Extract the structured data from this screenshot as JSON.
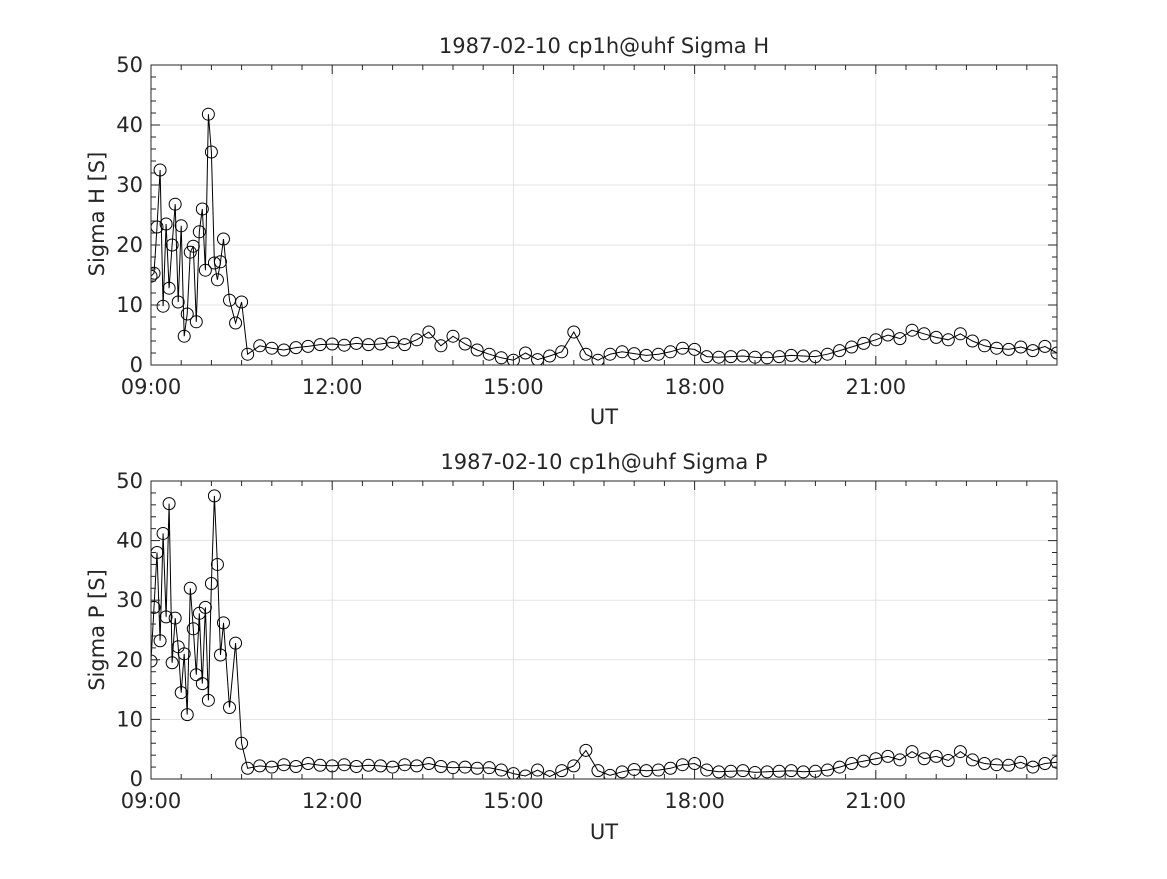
{
  "chart_data": [
    {
      "type": "line",
      "title": "1987-02-10  cp1h@uhf Sigma H",
      "xlabel": "UT",
      "ylabel": "Sigma H [S]",
      "xlim": [
        9.0,
        24.0
      ],
      "ylim": [
        0,
        50
      ],
      "xticks": [
        9,
        12,
        15,
        18,
        21
      ],
      "xtick_labels": [
        "09:00",
        "12:00",
        "15:00",
        "18:00",
        "21:00"
      ],
      "yticks": [
        0,
        10,
        20,
        30,
        40,
        50
      ],
      "ytick_labels": [
        "0",
        "10",
        "20",
        "30",
        "40",
        "50"
      ],
      "grid": true,
      "marker": "circle",
      "color": "#000000",
      "series": [
        {
          "x": [
            9.0,
            9.05,
            9.1,
            9.15,
            9.2,
            9.25,
            9.3,
            9.35,
            9.4,
            9.45,
            9.5,
            9.55,
            9.6,
            9.65,
            9.7,
            9.75,
            9.8,
            9.85,
            9.9,
            9.95,
            10.0,
            10.05,
            10.1,
            10.15,
            10.2,
            10.3,
            10.4,
            10.5,
            10.6,
            10.8,
            11.0,
            11.2,
            11.4,
            11.6,
            11.8,
            12.0,
            12.2,
            12.4,
            12.6,
            12.8,
            13.0,
            13.2,
            13.4,
            13.6,
            13.8,
            14.0,
            14.2,
            14.4,
            14.6,
            14.8,
            15.0,
            15.2,
            15.4,
            15.6,
            15.8,
            16.0,
            16.2,
            16.4,
            16.6,
            16.8,
            17.0,
            17.2,
            17.4,
            17.6,
            17.8,
            18.0,
            18.2,
            18.4,
            18.6,
            18.8,
            19.0,
            19.2,
            19.4,
            19.6,
            19.8,
            20.0,
            20.2,
            20.4,
            20.6,
            20.8,
            21.0,
            21.2,
            21.4,
            21.6,
            21.8,
            22.0,
            22.2,
            22.4,
            22.6,
            22.8,
            23.0,
            23.2,
            23.4,
            23.6,
            23.8,
            24.0
          ],
          "y": [
            14.8,
            15.3,
            23.0,
            32.5,
            9.8,
            23.5,
            12.8,
            20.0,
            26.8,
            10.5,
            23.2,
            4.8,
            8.5,
            18.8,
            19.8,
            7.2,
            22.2,
            26.0,
            15.8,
            41.8,
            35.5,
            17.0,
            14.2,
            17.2,
            21.0,
            10.8,
            7.0,
            10.5,
            1.8,
            3.2,
            2.8,
            2.5,
            2.9,
            3.1,
            3.4,
            3.5,
            3.3,
            3.6,
            3.4,
            3.5,
            3.8,
            3.4,
            4.2,
            5.5,
            3.2,
            4.8,
            3.5,
            2.5,
            1.8,
            1.2,
            0.8,
            2.0,
            0.9,
            1.5,
            2.2,
            5.5,
            1.8,
            0.8,
            1.8,
            2.2,
            1.9,
            1.6,
            1.8,
            2.2,
            2.8,
            2.6,
            1.4,
            1.3,
            1.4,
            1.5,
            1.3,
            1.2,
            1.4,
            1.6,
            1.5,
            1.4,
            1.8,
            2.4,
            3.0,
            3.6,
            4.2,
            5.0,
            4.4,
            5.8,
            5.2,
            4.6,
            4.2,
            5.2,
            4.0,
            3.2,
            2.8,
            2.6,
            3.0,
            2.4,
            3.1,
            2.0
          ]
        }
      ]
    },
    {
      "type": "line",
      "title": "1987-02-10  cp1h@uhf Sigma P",
      "xlabel": "UT",
      "ylabel": "Sigma P [S]",
      "xlim": [
        9.0,
        24.0
      ],
      "ylim": [
        0,
        50
      ],
      "xticks": [
        9,
        12,
        15,
        18,
        21
      ],
      "xtick_labels": [
        "09:00",
        "12:00",
        "15:00",
        "18:00",
        "21:00"
      ],
      "yticks": [
        0,
        10,
        20,
        30,
        40,
        50
      ],
      "ytick_labels": [
        "0",
        "10",
        "20",
        "30",
        "40",
        "50"
      ],
      "grid": true,
      "marker": "circle",
      "color": "#000000",
      "series": [
        {
          "x": [
            9.0,
            9.05,
            9.1,
            9.15,
            9.2,
            9.25,
            9.3,
            9.35,
            9.4,
            9.45,
            9.5,
            9.55,
            9.6,
            9.65,
            9.7,
            9.75,
            9.8,
            9.85,
            9.9,
            9.95,
            10.0,
            10.05,
            10.1,
            10.15,
            10.2,
            10.3,
            10.4,
            10.5,
            10.6,
            10.8,
            11.0,
            11.2,
            11.4,
            11.6,
            11.8,
            12.0,
            12.2,
            12.4,
            12.6,
            12.8,
            13.0,
            13.2,
            13.4,
            13.6,
            13.8,
            14.0,
            14.2,
            14.4,
            14.6,
            14.8,
            15.0,
            15.2,
            15.4,
            15.6,
            15.8,
            16.0,
            16.2,
            16.4,
            16.6,
            16.8,
            17.0,
            17.2,
            17.4,
            17.6,
            17.8,
            18.0,
            18.2,
            18.4,
            18.6,
            18.8,
            19.0,
            19.2,
            19.4,
            19.6,
            19.8,
            20.0,
            20.2,
            20.4,
            20.6,
            20.8,
            21.0,
            21.2,
            21.4,
            21.6,
            21.8,
            22.0,
            22.2,
            22.4,
            22.6,
            22.8,
            23.0,
            23.2,
            23.4,
            23.6,
            23.8,
            24.0
          ],
          "y": [
            19.8,
            28.8,
            38.0,
            23.2,
            41.2,
            27.2,
            46.2,
            19.5,
            27.0,
            22.2,
            14.5,
            21.0,
            10.8,
            32.0,
            25.2,
            17.5,
            27.8,
            16.0,
            28.8,
            13.2,
            32.8,
            47.5,
            36.0,
            20.8,
            26.2,
            12.0,
            22.8,
            6.0,
            1.8,
            2.2,
            2.0,
            2.4,
            2.1,
            2.6,
            2.3,
            2.2,
            2.4,
            2.1,
            2.3,
            2.2,
            2.0,
            2.4,
            2.2,
            2.6,
            2.1,
            1.9,
            2.0,
            1.8,
            1.9,
            1.5,
            0.9,
            0.5,
            1.5,
            0.4,
            1.4,
            2.2,
            4.8,
            1.4,
            0.6,
            1.2,
            1.6,
            1.4,
            1.5,
            1.8,
            2.4,
            2.6,
            1.5,
            1.2,
            1.3,
            1.4,
            1.1,
            1.2,
            1.3,
            1.4,
            1.2,
            1.3,
            1.5,
            2.0,
            2.6,
            3.0,
            3.4,
            3.8,
            3.2,
            4.6,
            3.4,
            3.8,
            3.1,
            4.6,
            3.2,
            2.6,
            2.4,
            2.3,
            2.8,
            2.0,
            2.6,
            2.8
          ]
        }
      ]
    }
  ]
}
